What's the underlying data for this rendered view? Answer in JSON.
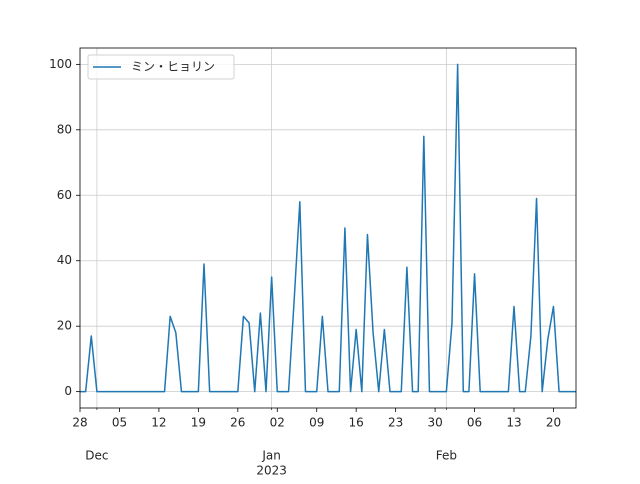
{
  "chart_data": {
    "type": "line",
    "x": [
      "2022-11-28",
      "2022-11-29",
      "2022-11-30",
      "2022-12-01",
      "2022-12-02",
      "2022-12-03",
      "2022-12-04",
      "2022-12-05",
      "2022-12-06",
      "2022-12-07",
      "2022-12-08",
      "2022-12-09",
      "2022-12-10",
      "2022-12-11",
      "2022-12-12",
      "2022-12-13",
      "2022-12-14",
      "2022-12-15",
      "2022-12-16",
      "2022-12-17",
      "2022-12-18",
      "2022-12-19",
      "2022-12-20",
      "2022-12-21",
      "2022-12-22",
      "2022-12-23",
      "2022-12-24",
      "2022-12-25",
      "2022-12-26",
      "2022-12-27",
      "2022-12-28",
      "2022-12-29",
      "2022-12-30",
      "2022-12-31",
      "2023-01-01",
      "2023-01-02",
      "2023-01-03",
      "2023-01-04",
      "2023-01-05",
      "2023-01-06",
      "2023-01-07",
      "2023-01-08",
      "2023-01-09",
      "2023-01-10",
      "2023-01-11",
      "2023-01-12",
      "2023-01-13",
      "2023-01-14",
      "2023-01-15",
      "2023-01-16",
      "2023-01-17",
      "2023-01-18",
      "2023-01-19",
      "2023-01-20",
      "2023-01-21",
      "2023-01-22",
      "2023-01-23",
      "2023-01-24",
      "2023-01-25",
      "2023-01-26",
      "2023-01-27",
      "2023-01-28",
      "2023-01-29",
      "2023-01-30",
      "2023-01-31",
      "2023-02-01",
      "2023-02-02",
      "2023-02-03",
      "2023-02-04",
      "2023-02-05",
      "2023-02-06",
      "2023-02-07",
      "2023-02-08",
      "2023-02-09",
      "2023-02-10",
      "2023-02-11",
      "2023-02-12",
      "2023-02-13",
      "2023-02-14",
      "2023-02-15",
      "2023-02-16",
      "2023-02-17",
      "2023-02-18",
      "2023-02-19",
      "2023-02-20",
      "2023-02-21",
      "2023-02-22",
      "2023-02-23",
      "2023-02-24"
    ],
    "series": [
      {
        "name": "ミン・ヒョリン",
        "color": "#1f77b4",
        "values": [
          0,
          0,
          17,
          0,
          0,
          0,
          0,
          0,
          0,
          0,
          0,
          0,
          0,
          0,
          0,
          0,
          23,
          18,
          0,
          0,
          0,
          0,
          39,
          0,
          0,
          0,
          0,
          0,
          0,
          23,
          21,
          0,
          24,
          0,
          35,
          0,
          0,
          0,
          28,
          58,
          0,
          0,
          0,
          23,
          0,
          0,
          0,
          50,
          0,
          19,
          0,
          48,
          18,
          0,
          19,
          0,
          0,
          0,
          38,
          0,
          0,
          78,
          0,
          0,
          0,
          0,
          21,
          100,
          0,
          0,
          36,
          0,
          0,
          0,
          0,
          0,
          0,
          26,
          0,
          0,
          17,
          59,
          0,
          16,
          26,
          0,
          0,
          0,
          0
        ]
      }
    ],
    "xlim": [
      "2022-11-28",
      "2023-02-24"
    ],
    "xticks": [
      {
        "value": "2022-11-28",
        "label": "28"
      },
      {
        "value": "2022-12-05",
        "label": "05"
      },
      {
        "value": "2022-12-12",
        "label": "12"
      },
      {
        "value": "2022-12-19",
        "label": "19"
      },
      {
        "value": "2022-12-26",
        "label": "26"
      },
      {
        "value": "2023-01-02",
        "label": "02"
      },
      {
        "value": "2023-01-09",
        "label": "09"
      },
      {
        "value": "2023-01-16",
        "label": "16"
      },
      {
        "value": "2023-01-23",
        "label": "23"
      },
      {
        "value": "2023-01-30",
        "label": "30"
      },
      {
        "value": "2023-02-06",
        "label": "06"
      },
      {
        "value": "2023-02-13",
        "label": "13"
      },
      {
        "value": "2023-02-20",
        "label": "20"
      }
    ],
    "month_ticks": [
      {
        "value": "2022-12-01",
        "label": "Dec"
      },
      {
        "value": "2023-01-01",
        "label": "Jan"
      },
      {
        "value": "2023-02-01",
        "label": "Feb"
      }
    ],
    "year_tick": {
      "value": "2023-01-01",
      "label": "2023"
    },
    "ylim": [
      -5,
      105
    ],
    "yticks": [
      0,
      20,
      40,
      60,
      80,
      100
    ],
    "grid": true,
    "legend": "upper left"
  }
}
